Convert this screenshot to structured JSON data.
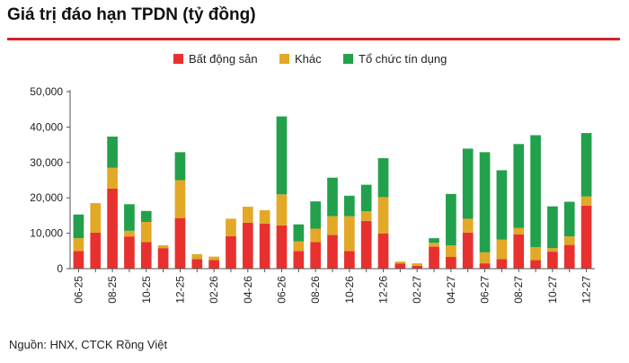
{
  "title": "Giá trị đáo hạn TPDN (tỷ đồng)",
  "source": "Nguồn: HNX, CTCK Rồng Việt",
  "chart_data": {
    "type": "bar",
    "stacked": true,
    "title": "Giá trị đáo hạn TPDN (tỷ đồng)",
    "xlabel": "",
    "ylabel": "",
    "ylim": [
      0,
      50000
    ],
    "yticks": [
      0,
      10000,
      20000,
      30000,
      40000,
      50000
    ],
    "ytick_labels": [
      "0",
      "10,000",
      "20,000",
      "30,000",
      "40,000",
      "50,000"
    ],
    "grid": false,
    "legend_position": "top-center",
    "categories": [
      "06-25",
      "07-25",
      "08-25",
      "09-25",
      "10-25",
      "11-25",
      "12-25",
      "01-26",
      "02-26",
      "03-26",
      "04-26",
      "05-26",
      "06-26",
      "07-26",
      "08-26",
      "09-26",
      "10-26",
      "11-26",
      "12-26",
      "01-27",
      "02-27",
      "03-27",
      "04-27",
      "05-27",
      "06-27",
      "07-27",
      "08-27",
      "09-27",
      "10-27",
      "11-27",
      "12-27"
    ],
    "xtick_labels": [
      "06-25",
      "08-25",
      "10-25",
      "12-25",
      "02-26",
      "04-26",
      "06-26",
      "08-26",
      "10-26",
      "12-26",
      "02-27",
      "04-27",
      "06-27",
      "08-27",
      "10-27",
      "12-27"
    ],
    "series": [
      {
        "name": "Bất động sản",
        "color": "#e8312f",
        "values": [
          5000,
          10200,
          22600,
          9100,
          7500,
          5800,
          14300,
          2700,
          2400,
          9200,
          13000,
          12700,
          12200,
          5000,
          7500,
          9500,
          5000,
          13500,
          9900,
          1400,
          800,
          6200,
          3300,
          10200,
          1500,
          2700,
          9700,
          2400,
          4800,
          6700,
          17800
        ]
      },
      {
        "name": "Khác",
        "color": "#e2a826",
        "values": [
          3600,
          8300,
          5900,
          1600,
          5700,
          800,
          10700,
          1400,
          1000,
          4900,
          4500,
          3800,
          8800,
          2700,
          3800,
          5300,
          9800,
          2700,
          10300,
          600,
          700,
          1100,
          3300,
          3900,
          3100,
          5500,
          1800,
          3700,
          1000,
          2400,
          2600
        ]
      },
      {
        "name": "Tổ chức tín dụng",
        "color": "#22a04b",
        "values": [
          6700,
          0,
          8800,
          7500,
          3100,
          0,
          7900,
          0,
          0,
          0,
          0,
          0,
          22000,
          4800,
          7700,
          10900,
          5800,
          7500,
          11000,
          0,
          0,
          1300,
          14500,
          19800,
          28300,
          19600,
          23700,
          31600,
          11800,
          9800,
          17900
        ]
      }
    ]
  }
}
